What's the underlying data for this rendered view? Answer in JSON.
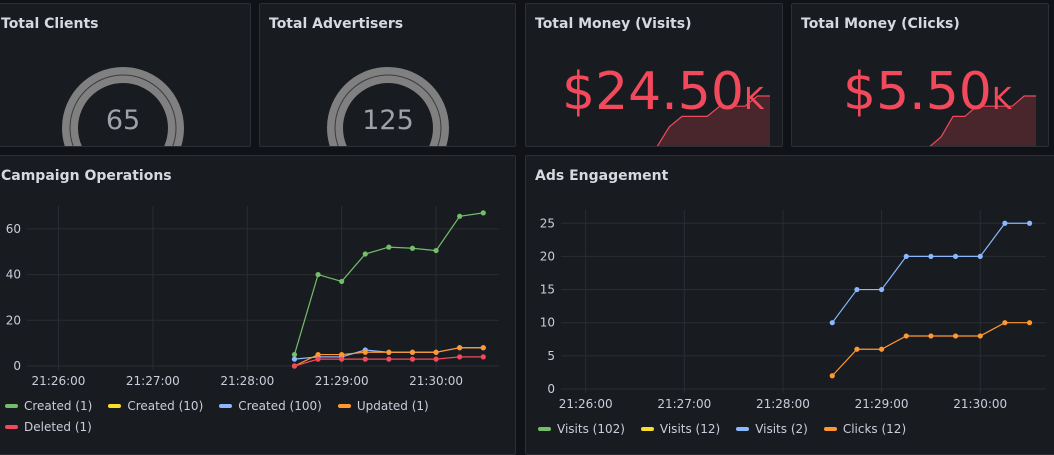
{
  "panels": {
    "clients": {
      "title": "Total Clients",
      "value": "65",
      "fraction": 0.65
    },
    "advertisers": {
      "title": "Total Advertisers",
      "value": "125",
      "fraction": 0.7
    },
    "money_visits": {
      "title": "Total Money (Visits)",
      "value": "$24.50",
      "unit": "K",
      "spark": [
        0,
        0,
        0,
        0,
        0,
        0,
        2,
        3,
        3,
        3,
        4,
        4,
        4,
        5,
        5
      ]
    },
    "money_clicks": {
      "title": "Total Money (Clicks)",
      "value": "$5.50",
      "unit": "K",
      "spark": [
        0,
        0,
        0,
        0,
        0,
        0,
        1,
        3,
        3,
        4,
        4,
        4,
        4,
        5,
        5
      ]
    },
    "campaign": {
      "title": "Campaign Operations"
    },
    "ads": {
      "title": "Ads Engagement"
    }
  },
  "colors": {
    "green": "#73bf69",
    "yellow": "#fade2a",
    "blue": "#8ab8ff",
    "orange": "#ff9830",
    "red": "#f2495c"
  },
  "chart_data": [
    {
      "type": "line",
      "title": "Campaign Operations",
      "ylim": [
        0,
        70
      ],
      "yticks": [
        0,
        20,
        40,
        60
      ],
      "xticks": [
        "21:26:00",
        "21:27:00",
        "21:28:00",
        "21:29:00",
        "21:30:00"
      ],
      "xlim": [
        "21:25:40",
        "21:30:40"
      ],
      "x": [
        "21:28:30",
        "21:28:45",
        "21:29:00",
        "21:29:15",
        "21:29:30",
        "21:29:45",
        "21:30:00",
        "21:30:15",
        "21:30:30"
      ],
      "series": [
        {
          "name": "Created (1)",
          "color": "#73bf69",
          "values": [
            5,
            40,
            37,
            49,
            52,
            51.5,
            50.5,
            65.5,
            67
          ]
        },
        {
          "name": "Created (10)",
          "color": "#fade2a",
          "values": [
            null,
            null,
            null,
            null,
            null,
            null,
            null,
            null,
            null
          ]
        },
        {
          "name": "Created (100)",
          "color": "#8ab8ff",
          "values": [
            3,
            4,
            4,
            7,
            6,
            6,
            6,
            8,
            8
          ]
        },
        {
          "name": "Updated (1)",
          "color": "#ff9830",
          "values": [
            0,
            5,
            5,
            6,
            6,
            6,
            6,
            8,
            8
          ]
        },
        {
          "name": "Deleted (1)",
          "color": "#f2495c",
          "values": [
            0,
            3,
            3,
            3,
            3,
            3,
            3,
            4,
            4
          ]
        }
      ]
    },
    {
      "type": "line",
      "title": "Ads Engagement",
      "ylim": [
        0,
        27
      ],
      "yticks": [
        0,
        5,
        10,
        15,
        20,
        25
      ],
      "xticks": [
        "21:26:00",
        "21:27:00",
        "21:28:00",
        "21:29:00",
        "21:30:00"
      ],
      "xlim": [
        "21:25:45",
        "21:30:40"
      ],
      "x": [
        "21:28:30",
        "21:28:45",
        "21:29:00",
        "21:29:15",
        "21:29:30",
        "21:29:45",
        "21:30:00",
        "21:30:15",
        "21:30:30"
      ],
      "series": [
        {
          "name": "Visits (102)",
          "color": "#73bf69",
          "values": [
            null,
            null,
            null,
            null,
            null,
            null,
            null,
            null,
            null
          ]
        },
        {
          "name": "Visits (12)",
          "color": "#fade2a",
          "values": [
            null,
            null,
            null,
            null,
            null,
            null,
            null,
            null,
            null
          ]
        },
        {
          "name": "Visits (2)",
          "color": "#8ab8ff",
          "values": [
            10,
            15,
            15,
            20,
            20,
            20,
            20,
            25,
            25
          ]
        },
        {
          "name": "Clicks (12)",
          "color": "#ff9830",
          "values": [
            2,
            6,
            6,
            8,
            8,
            8,
            8,
            10,
            10
          ]
        }
      ]
    }
  ]
}
